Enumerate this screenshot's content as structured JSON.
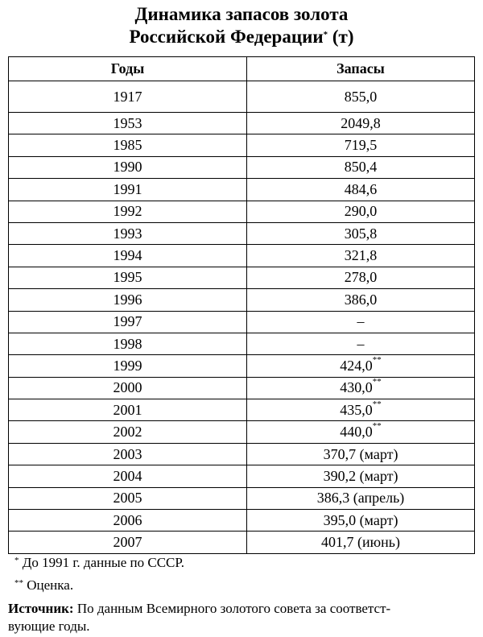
{
  "header": {
    "title_line1": "Динамика запасов золота",
    "title_line2": "Российской Федерации",
    "title_mark": "*",
    "unit": "(т)"
  },
  "table": {
    "columns": [
      "Годы",
      "Запасы"
    ],
    "rows": [
      {
        "year": "1917",
        "value": "855,0"
      },
      {
        "year": "1953",
        "value": "2049,8"
      },
      {
        "year": "1985",
        "value": "719,5"
      },
      {
        "year": "1990",
        "value": "850,4"
      },
      {
        "year": "1991",
        "value": "484,6"
      },
      {
        "year": "1992",
        "value": "290,0"
      },
      {
        "year": "1993",
        "value": "305,8"
      },
      {
        "year": "1994",
        "value": "321,8"
      },
      {
        "year": "1995",
        "value": "278,0"
      },
      {
        "year": "1996",
        "value": "386,0"
      },
      {
        "year": "1997",
        "value": "–"
      },
      {
        "year": "1998",
        "value": "–"
      },
      {
        "year": "1999",
        "value": "424,0",
        "mark": "**"
      },
      {
        "year": "2000",
        "value": "430,0",
        "mark": "**"
      },
      {
        "year": "2001",
        "value": "435,0",
        "mark": "**"
      },
      {
        "year": "2002",
        "value": "440,0",
        "mark": "**"
      },
      {
        "year": "2003",
        "value": "370,7 (март)"
      },
      {
        "year": "2004",
        "value": "390,2 (март)"
      },
      {
        "year": "2005",
        "value": "386,3 (апрель)"
      },
      {
        "year": "2006",
        "value": "395,0 (март)"
      },
      {
        "year": "2007",
        "value": "401,7 (июнь)"
      }
    ]
  },
  "footnotes": [
    {
      "mark": "*",
      "text": "До 1991 г. данные по СССР."
    },
    {
      "mark": "**",
      "text": "Оценка."
    }
  ],
  "source": {
    "label": "Источник:",
    "lines": [
      "По данным Всемирного золотого совета за соответст-",
      "вующие годы."
    ]
  }
}
